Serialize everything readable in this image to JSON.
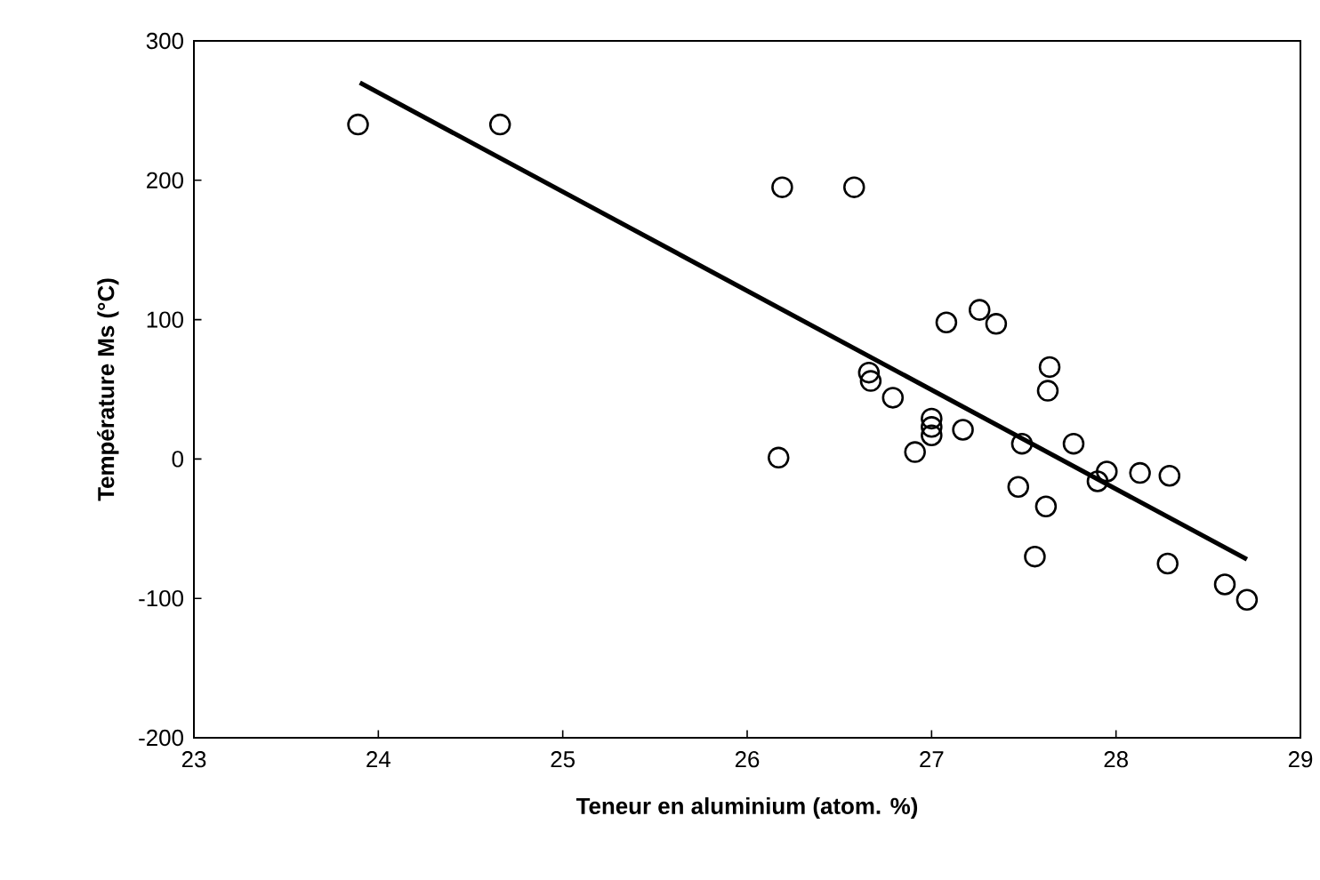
{
  "chart_data": {
    "type": "scatter",
    "xlabel": "Teneur en aluminium (atom. %)",
    "ylabel": "Température  Ms (°C)",
    "xlim": [
      23,
      29
    ],
    "xticks": [
      23,
      24,
      25,
      26,
      27,
      28,
      29
    ],
    "ylim": [
      -200,
      300
    ],
    "yticks": [
      -200,
      -100,
      0,
      100,
      200,
      300
    ],
    "grid": false,
    "series": [
      {
        "marker": "circle",
        "color": "#000000",
        "x": [
          23.89,
          24.66,
          26.17,
          26.19,
          26.58,
          26.66,
          26.67,
          26.79,
          27.0,
          27.0,
          27.0,
          26.91,
          27.08,
          27.26,
          27.35,
          27.17,
          27.64,
          27.63,
          27.49,
          27.47,
          27.62,
          27.56,
          27.77,
          27.9,
          27.95,
          28.13,
          28.29,
          28.28,
          28.59,
          28.71
        ],
        "values": [
          240,
          240,
          1,
          195,
          195,
          62,
          56,
          44,
          29,
          23,
          17,
          5,
          98,
          107,
          97,
          21,
          66,
          49,
          11,
          -20,
          -34,
          -70,
          11,
          -16,
          -9,
          -10,
          -12,
          -75,
          -90,
          -101
        ]
      },
      {
        "type": "line",
        "color": "#000000",
        "x": [
          23.9,
          28.71
        ],
        "values": [
          270,
          -72
        ]
      }
    ]
  }
}
